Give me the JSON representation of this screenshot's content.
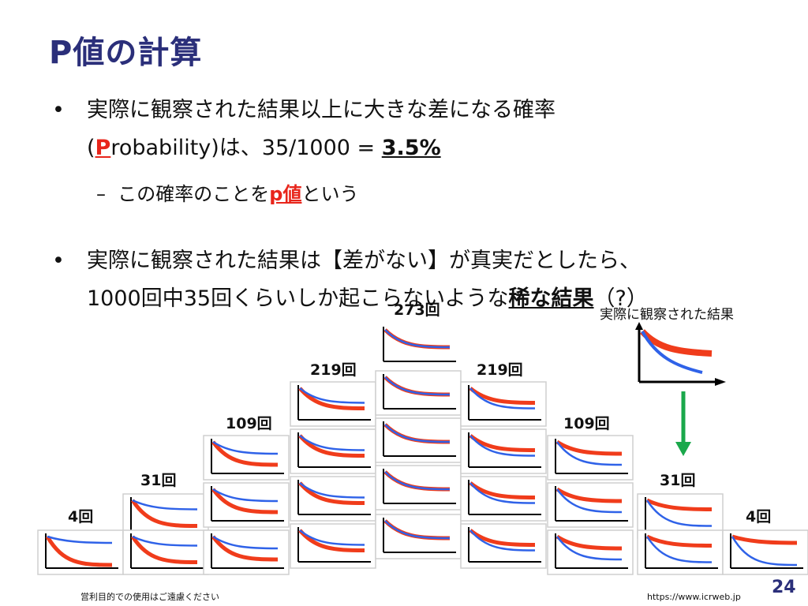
{
  "title": "P値の計算",
  "bullets": [
    {
      "line1": "実際に観察された結果以上に大きな差になる確率",
      "line2_prefix": "(",
      "line2_red": "P",
      "line2_mid": "robability)は、35/1000 = ",
      "line2_bold": "3.5%"
    },
    {
      "line1": "実際に観察された結果は【差がない】が真実だとしたら、",
      "line2_prefix": "1000回中35回くらいしか起こらないような",
      "line2_bold": "稀な結果",
      "line2_suffix": "（?）"
    }
  ],
  "sub_bullet": {
    "dash": "–",
    "prefix": "この確率のことを",
    "red": "p値",
    "suffix": "という"
  },
  "distribution": {
    "counts": [
      "4回",
      "31回",
      "109回",
      "219回",
      "273回",
      "219回",
      "109回",
      "31回",
      "4回"
    ],
    "observed_label": "実際に観察された結果",
    "colors": {
      "red": "#f03c1b",
      "blue": "#2f62e8",
      "arrow": "#1aa84b"
    }
  },
  "footer": {
    "left": "営利目的での使用はご遠慮ください",
    "right": "https://www.icrweb.jp",
    "page": "24"
  }
}
